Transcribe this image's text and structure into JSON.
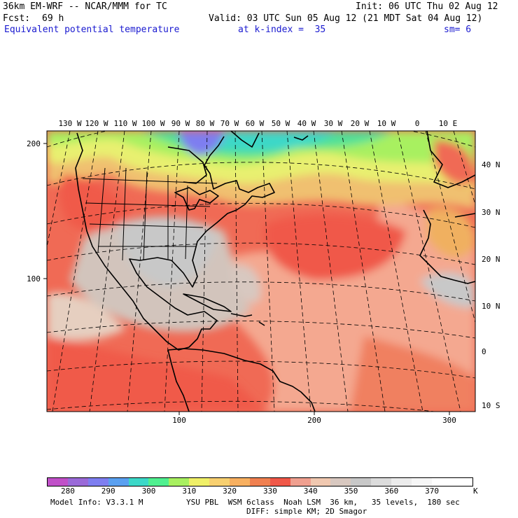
{
  "header": {
    "model": "36km EM-WRF -- NCAR/MMM for TC",
    "init": "Init: 06 UTC Thu 02 Aug 12",
    "fcst_label": "Fcst:",
    "fcst_value": "69 h",
    "valid": "Valid: 03 UTC Sun 05 Aug 12 (21 MDT Sat 04 Aug 12)",
    "field": "Equivalent potential temperature",
    "level": "at k-index =  35",
    "smoothing": "sm= 6"
  },
  "map": {
    "top_lon_labels": [
      "130 W",
      "120 W",
      "110 W",
      "100 W",
      "90 W",
      "80 W",
      "70 W",
      "60 W",
      "50 W",
      "40 W",
      "30 W",
      "20 W",
      "10 W",
      "0",
      "10 E"
    ],
    "right_lat_labels": [
      "40 N",
      "30 N",
      "20 N",
      "10 N",
      "0",
      "10 S"
    ],
    "left_grid_labels": [
      "200",
      "100"
    ],
    "bottom_grid_labels": [
      "100",
      "200",
      "300"
    ]
  },
  "colorbar": {
    "labels": [
      "280",
      "290",
      "300",
      "310",
      "320",
      "330",
      "340",
      "350",
      "360",
      "370"
    ],
    "unit": "K",
    "colors": [
      "#c050c8",
      "#9a6ad8",
      "#7e7ef0",
      "#5aa0f0",
      "#3cd8c8",
      "#50f090",
      "#a8f060",
      "#f0f068",
      "#f8d070",
      "#f8b060",
      "#f08050",
      "#f05848",
      "#f0a090",
      "#f0c8b0",
      "#d8c8c0",
      "#c8c8c8",
      "#dcdcdc",
      "#ececec",
      "#f6f6f6",
      "#ffffff",
      "#ffffff"
    ]
  },
  "footer": {
    "model_info": "Model Info: V3.3.1 M",
    "physics1": "YSU PBL  WSM 6class  Noah LSM  36 km,   35 levels,  180 sec",
    "physics2": "DIFF: simple KM; 2D Smagor"
  }
}
